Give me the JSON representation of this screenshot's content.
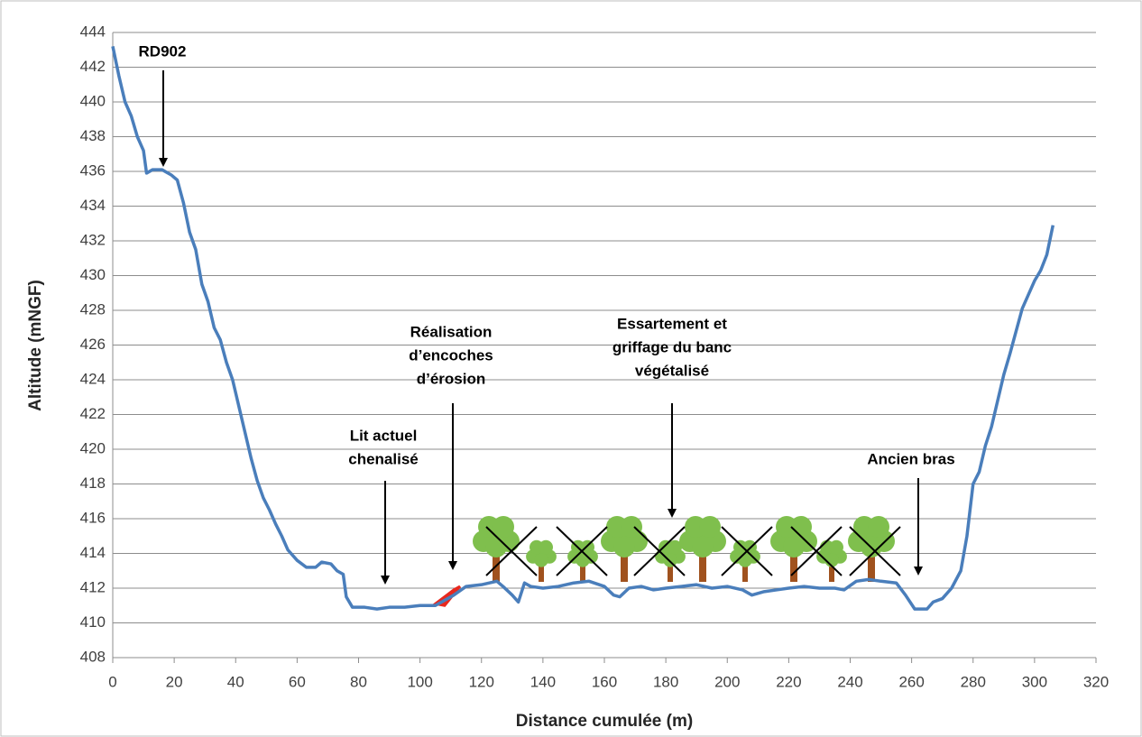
{
  "chart_data": {
    "type": "line",
    "x_label": "Distance cumulée (m)",
    "y_label": "Altitude (mNGF)",
    "xlim": [
      0,
      320
    ],
    "xticks": [
      0,
      20,
      40,
      60,
      80,
      100,
      120,
      140,
      160,
      180,
      200,
      220,
      240,
      260,
      280,
      300,
      320
    ],
    "ylim": [
      408,
      444
    ],
    "yticks": [
      408,
      410,
      412,
      414,
      416,
      418,
      420,
      422,
      424,
      426,
      428,
      430,
      432,
      434,
      436,
      438,
      440,
      442,
      444
    ],
    "grid": true,
    "series": [
      {
        "color": "#4a7ebb",
        "x": [
          0,
          2,
          4,
          6,
          8,
          10,
          11,
          13,
          16,
          19,
          21,
          23,
          25,
          27,
          29,
          31,
          33,
          35,
          37,
          39,
          41,
          43,
          45,
          47,
          49,
          51,
          53,
          55,
          57,
          60,
          63,
          66,
          68,
          71,
          73,
          75,
          76,
          78,
          82,
          86,
          90,
          95,
          100,
          105,
          108,
          111,
          115,
          120,
          125,
          127,
          130,
          132,
          134,
          136,
          140,
          145,
          150,
          155,
          160,
          163,
          165,
          168,
          172,
          176,
          180,
          185,
          190,
          195,
          200,
          205,
          208,
          212,
          216,
          220,
          225,
          230,
          235,
          238,
          242,
          246,
          250,
          255,
          258,
          261,
          265,
          267,
          270,
          273,
          276,
          278,
          280,
          282,
          284,
          286,
          288,
          290,
          292,
          294,
          296,
          298,
          300,
          302,
          304,
          306
        ],
        "values": [
          443.2,
          441.5,
          440,
          439.2,
          438,
          437.2,
          435.9,
          436.1,
          436.1,
          435.8,
          435.5,
          434.2,
          432.5,
          431.5,
          429.5,
          428.5,
          427,
          426.3,
          425,
          424,
          422.5,
          421,
          419.5,
          418.2,
          417.2,
          416.5,
          415.7,
          415,
          414.2,
          413.6,
          413.2,
          413.2,
          413.5,
          413.4,
          413,
          412.8,
          411.5,
          410.9,
          410.9,
          410.8,
          410.9,
          410.9,
          411,
          411,
          411.3,
          411.6,
          412.1,
          412.2,
          412.4,
          412.1,
          411.6,
          411.2,
          412.3,
          412.1,
          412,
          412.1,
          412.3,
          412.4,
          412.1,
          411.6,
          411.5,
          412,
          412.1,
          411.9,
          412,
          412.1,
          412.2,
          412,
          412.1,
          411.9,
          411.6,
          411.8,
          411.9,
          412,
          412.1,
          412,
          412,
          411.9,
          412.4,
          412.5,
          412.4,
          412.3,
          411.6,
          410.8,
          410.8,
          411.2,
          411.4,
          412,
          413,
          415,
          418,
          418.7,
          420.2,
          421.3,
          422.8,
          424.3,
          425.5,
          426.8,
          428.1,
          428.9,
          429.7,
          430.3,
          431.2,
          432.9
        ]
      }
    ],
    "annotations": [
      [
        "RD902"
      ],
      [
        "Lit actuel",
        "chenalisé"
      ],
      [
        "Réalisation",
        "d’encoches",
        "d’érosion"
      ],
      [
        "Essartement  et",
        "griffage du banc",
        "végétalisé"
      ],
      [
        "Ancien bras"
      ]
    ]
  }
}
